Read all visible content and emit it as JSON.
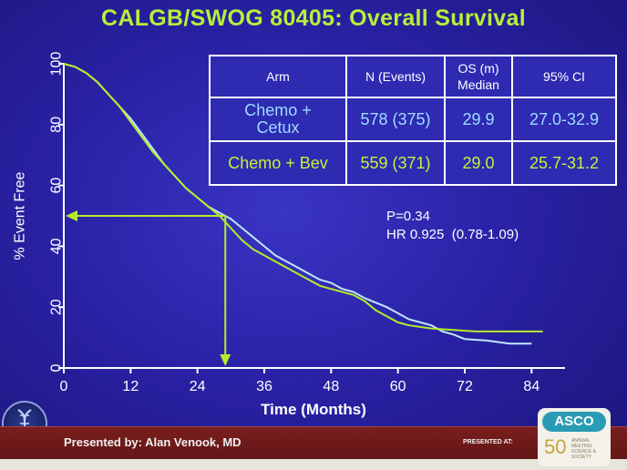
{
  "title": "CALGB/SWOG 80405: Overall Survival",
  "chart_data": {
    "type": "line",
    "title": "CALGB/SWOG 80405: Overall Survival",
    "xlabel": "Time (Months)",
    "ylabel": "% Event Free",
    "xlim": [
      0,
      90
    ],
    "ylim": [
      0,
      100
    ],
    "xticks": [
      0,
      12,
      24,
      36,
      48,
      60,
      72,
      84
    ],
    "yticks": [
      0,
      20,
      40,
      60,
      80,
      100
    ],
    "grid": false,
    "series": [
      {
        "name": "Chemo + Cetux",
        "color": "#bfe6ff",
        "points": [
          [
            0,
            100
          ],
          [
            2,
            99
          ],
          [
            4,
            97
          ],
          [
            6,
            94
          ],
          [
            8,
            90
          ],
          [
            10,
            86
          ],
          [
            12,
            82
          ],
          [
            14,
            77
          ],
          [
            16,
            72
          ],
          [
            18,
            67
          ],
          [
            20,
            63
          ],
          [
            22,
            59
          ],
          [
            24,
            56
          ],
          [
            26,
            53
          ],
          [
            28,
            51
          ],
          [
            30,
            49
          ],
          [
            32,
            46
          ],
          [
            34,
            43
          ],
          [
            36,
            40
          ],
          [
            38,
            37
          ],
          [
            40,
            35
          ],
          [
            42,
            33
          ],
          [
            44,
            31
          ],
          [
            46,
            29
          ],
          [
            48,
            28
          ],
          [
            50,
            26
          ],
          [
            52,
            25
          ],
          [
            54,
            23
          ],
          [
            56,
            21.5
          ],
          [
            58,
            20
          ],
          [
            60,
            18
          ],
          [
            62,
            16
          ],
          [
            64,
            15
          ],
          [
            66,
            14
          ],
          [
            68,
            12
          ],
          [
            70,
            11
          ],
          [
            72,
            9.5
          ],
          [
            76,
            9
          ],
          [
            80,
            8
          ],
          [
            84,
            8
          ]
        ]
      },
      {
        "name": "Chemo + Bev",
        "color": "#b4ec2a",
        "points": [
          [
            0,
            100
          ],
          [
            2,
            99
          ],
          [
            4,
            97
          ],
          [
            6,
            94
          ],
          [
            8,
            90
          ],
          [
            10,
            86
          ],
          [
            12,
            81
          ],
          [
            14,
            76
          ],
          [
            16,
            71
          ],
          [
            18,
            67
          ],
          [
            20,
            63
          ],
          [
            22,
            59
          ],
          [
            24,
            56
          ],
          [
            26,
            53
          ],
          [
            28,
            50
          ],
          [
            30,
            46
          ],
          [
            32,
            42
          ],
          [
            34,
            39
          ],
          [
            36,
            37
          ],
          [
            38,
            35
          ],
          [
            40,
            33
          ],
          [
            42,
            31
          ],
          [
            44,
            29
          ],
          [
            46,
            27
          ],
          [
            48,
            26
          ],
          [
            50,
            25
          ],
          [
            52,
            24
          ],
          [
            54,
            22
          ],
          [
            56,
            19
          ],
          [
            58,
            17
          ],
          [
            60,
            15
          ],
          [
            62,
            14
          ],
          [
            64,
            13.5
          ],
          [
            66,
            13
          ],
          [
            70,
            12.5
          ],
          [
            74,
            12
          ],
          [
            80,
            12
          ],
          [
            86,
            12
          ]
        ]
      }
    ],
    "median_reference": {
      "x": 29.0,
      "y": 50
    },
    "table": {
      "headers": [
        "Arm",
        "N (Events)",
        "OS (m)\nMedian",
        "95% CI"
      ],
      "rows": [
        {
          "arm": "Chemo +\nCetux",
          "n_events": "578 (375)",
          "median": "29.9",
          "ci": "27.0-32.9"
        },
        {
          "arm": "Chemo + Bev",
          "n_events": "559 (371)",
          "median": "29.0",
          "ci": "25.7-31.2"
        }
      ]
    },
    "annotations": {
      "p_value": "P=0.34",
      "hazard_ratio": "HR 0.925  (0.78-1.09)"
    }
  },
  "footer": {
    "presenter": "Presented by: Alan Venook, MD",
    "presented_at": "PRESENTED AT:",
    "asco_badge": "ASCO",
    "asco_anniversary": "50",
    "asco_caption": "ANNUAL MEETING SCIENCE & SOCIETY"
  },
  "colors": {
    "background": "#2a22a6",
    "title": "#b6f03a",
    "axis": "#ffffff",
    "arrow": "#b4ec2a",
    "footer_bar": "#6e1a1a"
  }
}
